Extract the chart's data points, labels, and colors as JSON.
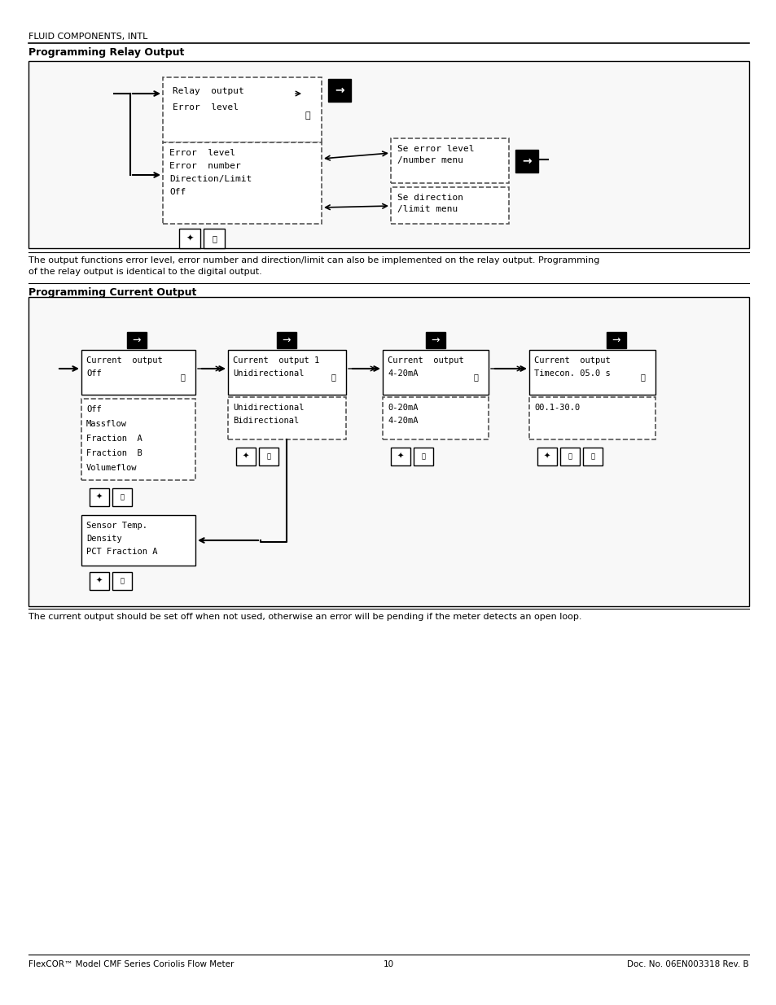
{
  "page_header_company": "FLUID COMPONENTS, INTL",
  "section1_title": "Programming Relay Output",
  "section2_title": "Programming Current Output",
  "footer_left": "FlexCOR™ Model CMF Series Coriolis Flow Meter",
  "footer_center": "10",
  "footer_right": "Doc. No. 06EN003318 Rev. B",
  "body_text1": "The output functions error level, error number and direction/limit can also be implemented on the relay output. Programming\nof the relay output is identical to the digital output.",
  "body_text2": "The current output should be set off when not used, otherwise an error will be pending if the meter detects an open loop.",
  "bg_color": "#ffffff",
  "box_border_color": "#000000",
  "dashed_color": "#555555"
}
